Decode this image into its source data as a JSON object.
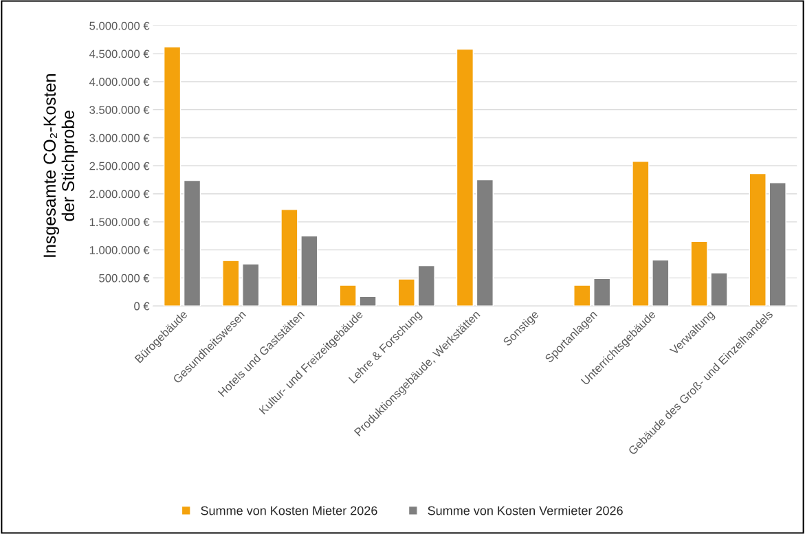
{
  "chart_data": {
    "type": "bar",
    "ylabel": "Insgesamte CO₂-Kosten\nder Stichprobe",
    "categories": [
      "Bürogebäude",
      "Gesundheitswesen",
      "Hotels und Gaststätten",
      "Kultur- und Freizeitgebäude",
      "Lehre & Forschung",
      "Produktionsgebäude, Werkstätten",
      "Sonstige",
      "Sportanlagen",
      "Unterrichtsgebäude",
      "Verwaltung",
      "Gebäude des Groß- und Einzelhandels"
    ],
    "series": [
      {
        "name": "Summe von Kosten Mieter 2026",
        "color": "#f4a20c",
        "values": [
          4620000,
          810000,
          1720000,
          370000,
          480000,
          4580000,
          null,
          370000,
          2580000,
          1150000,
          2360000
        ]
      },
      {
        "name": "Summe von Kosten Vermieter 2026",
        "color": "#7f7f7f",
        "values": [
          2240000,
          750000,
          1250000,
          170000,
          720000,
          2250000,
          null,
          490000,
          820000,
          590000,
          2200000
        ]
      }
    ],
    "ylim": [
      0,
      5000000
    ],
    "yticks": [
      {
        "value": 0,
        "label": "0 €"
      },
      {
        "value": 500000,
        "label": "500.000 €"
      },
      {
        "value": 1000000,
        "label": "1.000.000 €"
      },
      {
        "value": 1500000,
        "label": "1.500.000 €"
      },
      {
        "value": 2000000,
        "label": "2.000.000 €"
      },
      {
        "value": 2500000,
        "label": "2.500.000 €"
      },
      {
        "value": 3000000,
        "label": "3.000.000 €"
      },
      {
        "value": 3500000,
        "label": "3.500.000 €"
      },
      {
        "value": 4000000,
        "label": "4.000.000 €"
      },
      {
        "value": 4500000,
        "label": "4.500.000 €"
      },
      {
        "value": 5000000,
        "label": "5.000.000 €"
      }
    ],
    "grid": "y",
    "legend": "bottom"
  }
}
